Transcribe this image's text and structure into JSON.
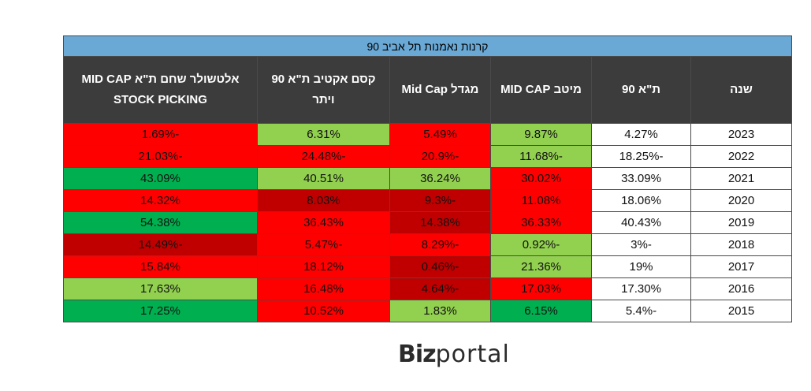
{
  "chart_data": {
    "type": "table",
    "title": "קרנות נאמנות תל אביב 90",
    "columns": [
      "שנה",
      "ת\"א 90",
      "מיטב MID CAP",
      "מגדל Mid Cap",
      "קסם אקטיב ת\"א 90 ויתר",
      "אלטשולר שחם ת\"א MID CAP STOCK PICKING"
    ],
    "rows": [
      {
        "year": "2023",
        "values": [
          "4.27%",
          "9.87%",
          "5.49%",
          "6.31%",
          "-1.69%"
        ],
        "colors": [
          "white",
          "lightgreen",
          "red",
          "lightgreen",
          "red"
        ]
      },
      {
        "year": "2022",
        "values": [
          "-18.25%",
          "-11.68%",
          "-20.9%",
          "-24.48%",
          "-21.03%"
        ],
        "colors": [
          "white",
          "lightgreen",
          "red",
          "red",
          "red"
        ]
      },
      {
        "year": "2021",
        "values": [
          "33.09%",
          "30.02%",
          "36.24%",
          "40.51%",
          "43.09%"
        ],
        "colors": [
          "white",
          "red",
          "lightgreen",
          "lightgreen",
          "green"
        ]
      },
      {
        "year": "2020",
        "values": [
          "18.06%",
          "11.08%",
          "-9.3%",
          "8.03%",
          "14.32%"
        ],
        "colors": [
          "white",
          "red",
          "darkred",
          "darkred",
          "red"
        ]
      },
      {
        "year": "2019",
        "values": [
          "40.43%",
          "36.33%",
          "14.38%",
          "36.43%",
          "54.38%"
        ],
        "colors": [
          "white",
          "red",
          "darkred",
          "red",
          "green"
        ]
      },
      {
        "year": "2018",
        "values": [
          "-3%",
          "-0.92%",
          "-8.29%",
          "-5.47%",
          "-14.49%"
        ],
        "colors": [
          "white",
          "lightgreen",
          "red",
          "red",
          "darkred"
        ]
      },
      {
        "year": "2017",
        "values": [
          "19%",
          "21.36%",
          "-0.46%",
          "18.12%",
          "15.84%"
        ],
        "colors": [
          "white",
          "lightgreen",
          "darkred",
          "red",
          "red"
        ]
      },
      {
        "year": "2016",
        "values": [
          "17.30%",
          "17.03%",
          "-4.64%",
          "16.48%",
          "17.63%"
        ],
        "colors": [
          "white",
          "red",
          "darkred",
          "red",
          "lightgreen"
        ]
      },
      {
        "year": "2015",
        "values": [
          "-5.4%",
          "6.15%",
          "1.83%",
          "10.52%",
          "17.25%"
        ],
        "colors": [
          "white",
          "green",
          "lightgreen",
          "red",
          "green"
        ]
      }
    ]
  },
  "palette": {
    "white": "#ffffff",
    "red": "#ff0000",
    "darkred": "#c00000",
    "lightgreen": "#92d050",
    "green": "#00b050",
    "title_bg": "#6aa9d6",
    "header_bg": "#3c3c3c"
  },
  "brand": {
    "bold": "Biz",
    "light": "portal"
  }
}
